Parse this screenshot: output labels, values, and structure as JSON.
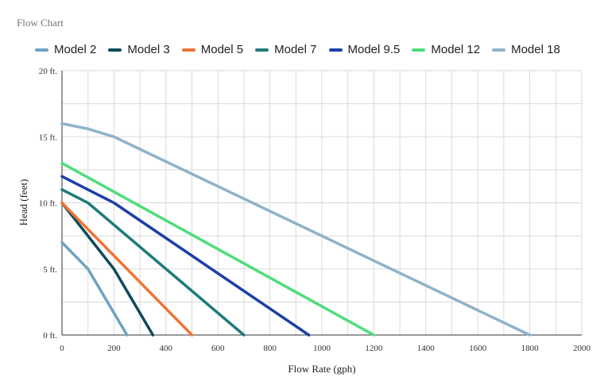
{
  "chart_data": {
    "type": "line",
    "title": "Flow Chart",
    "xlabel": "Flow Rate (gph)",
    "ylabel": "Head (feet)",
    "xlim": [
      0,
      2000
    ],
    "ylim": [
      0,
      20
    ],
    "x_ticks": [
      0,
      200,
      400,
      600,
      800,
      1000,
      1200,
      1400,
      1600,
      1800,
      2000
    ],
    "x_tick_labels": [
      "0",
      "200",
      "400",
      "600",
      "800",
      "1000",
      "1200",
      "1400",
      "1600",
      "1800",
      "2000"
    ],
    "y_ticks": [
      0,
      5,
      10,
      15,
      20
    ],
    "y_tick_labels": [
      "0 ft.",
      "5 ft.",
      "10 ft.",
      "15 ft.",
      "20 ft."
    ],
    "grid": true,
    "legend_position": "top",
    "series": [
      {
        "name": "Model 2",
        "color": "#6fa3bf",
        "points": [
          [
            0,
            7
          ],
          [
            100,
            5
          ],
          [
            250,
            0
          ]
        ]
      },
      {
        "name": "Model 3",
        "color": "#0f4c5c",
        "points": [
          [
            0,
            10
          ],
          [
            200,
            5
          ],
          [
            350,
            0
          ]
        ]
      },
      {
        "name": "Model 5",
        "color": "#ee7536",
        "points": [
          [
            0,
            10
          ],
          [
            500,
            0
          ]
        ]
      },
      {
        "name": "Model 7",
        "color": "#1e7b7b",
        "points": [
          [
            0,
            11
          ],
          [
            100,
            10
          ],
          [
            700,
            0
          ]
        ]
      },
      {
        "name": "Model 9.5",
        "color": "#1c3fa6",
        "points": [
          [
            0,
            12
          ],
          [
            200,
            10
          ],
          [
            950,
            0
          ]
        ]
      },
      {
        "name": "Model 12",
        "color": "#4fdc7c",
        "points": [
          [
            0,
            13
          ],
          [
            1200,
            0
          ]
        ]
      },
      {
        "name": "Model 18",
        "color": "#8db3c8",
        "points": [
          [
            0,
            16
          ],
          [
            100,
            15.6
          ],
          [
            200,
            15
          ],
          [
            1800,
            0
          ]
        ]
      }
    ]
  }
}
